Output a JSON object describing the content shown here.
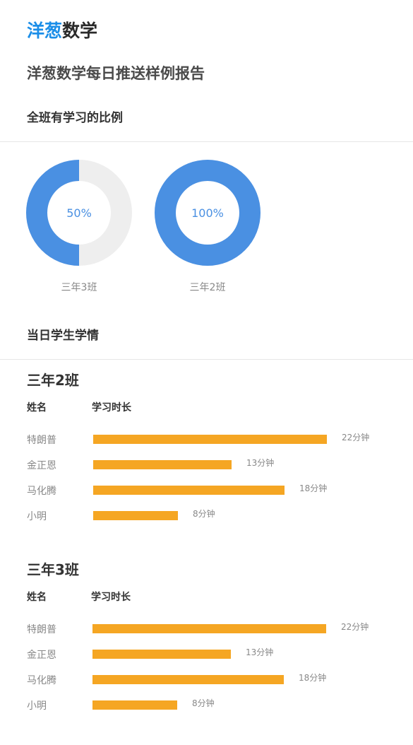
{
  "header": {
    "logo_part1": "洋葱",
    "logo_part2": "数学",
    "report_title": "洋葱数学每日推送样例报告"
  },
  "sections": {
    "ratio_title": "全班有学习的比例",
    "daily_title": "当日学生学情"
  },
  "colors": {
    "accent_blue": "#4a90e2",
    "ring_empty": "#eeeeee",
    "bar_orange": "#f5a623"
  },
  "chart_data": [
    {
      "type": "pie",
      "variant": "donut",
      "label": "三年3班",
      "center_text": "50%",
      "value": 50
    },
    {
      "type": "pie",
      "variant": "donut",
      "label": "三年2班",
      "center_text": "100%",
      "value": 100
    },
    {
      "type": "bar",
      "orientation": "horizontal",
      "title": "三年2班",
      "col_name": "姓名",
      "col_duration": "学习时长",
      "unit": "分钟",
      "categories": [
        "特朗普",
        "金正恩",
        "马化腾",
        "小明"
      ],
      "values": [
        22,
        13,
        18,
        8
      ],
      "value_labels": [
        "22分钟",
        "13分钟",
        "18分钟",
        "8分钟"
      ]
    },
    {
      "type": "bar",
      "orientation": "horizontal",
      "title": "三年3班",
      "col_name": "姓名",
      "col_duration": "学习时长",
      "unit": "分钟",
      "categories": [
        "特朗普",
        "金正恩",
        "马化腾",
        "小明"
      ],
      "values": [
        22,
        13,
        18,
        8
      ],
      "value_labels": [
        "22分钟",
        "13分钟",
        "18分钟",
        "8分钟"
      ]
    }
  ]
}
